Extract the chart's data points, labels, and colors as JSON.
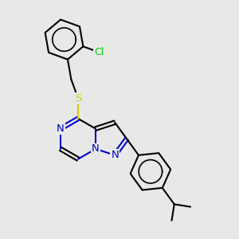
{
  "background_color": "#e8e8e8",
  "bond_color": "#000000",
  "N_color": "#0000cc",
  "S_color": "#cccc00",
  "Cl_color": "#00cc00",
  "lw": 1.5,
  "fs": 9.5,
  "xlim": [
    -0.5,
    6.0
  ],
  "ylim": [
    -0.3,
    5.8
  ]
}
